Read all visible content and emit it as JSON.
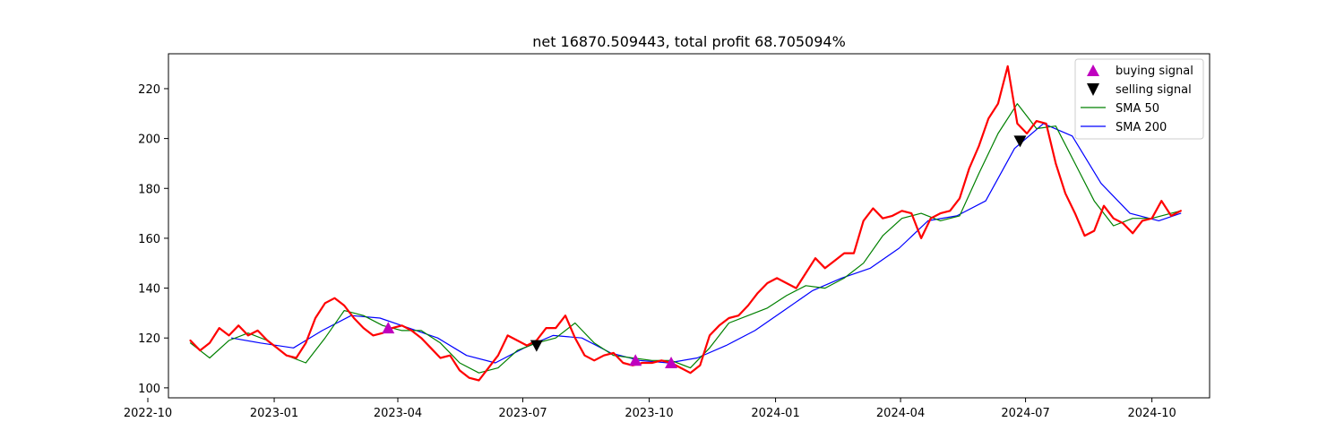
{
  "chart_data": {
    "type": "line",
    "title": "net 16870.509443, total profit 68.705094%",
    "xlabel": "",
    "ylabel": "",
    "x_ticks": [
      "2022-10",
      "2023-01",
      "2023-04",
      "2023-07",
      "2023-10",
      "2024-01",
      "2024-04",
      "2024-07",
      "2024-10"
    ],
    "y_ticks": [
      "100",
      "120",
      "140",
      "160",
      "180",
      "200",
      "220"
    ],
    "ylim": [
      96,
      234
    ],
    "xlim": [
      "2022-10-16",
      "2024-11-12"
    ],
    "grid": false,
    "legend_position": "top-right",
    "colors": {
      "close": "#ff0000",
      "sma50": "#008000",
      "sma200": "#0000ff",
      "buy": "#bf00bf",
      "sell": "#000000"
    },
    "series": [
      {
        "name": "close",
        "x": [
          "2022-11-01",
          "2022-11-08",
          "2022-11-15",
          "2022-11-22",
          "2022-11-29",
          "2022-12-06",
          "2022-12-13",
          "2022-12-20",
          "2022-12-27",
          "2023-01-03",
          "2023-01-10",
          "2023-01-17",
          "2023-01-24",
          "2023-01-31",
          "2023-02-07",
          "2023-02-14",
          "2023-02-21",
          "2023-02-28",
          "2023-03-07",
          "2023-03-14",
          "2023-03-21",
          "2023-03-28",
          "2023-04-04",
          "2023-04-11",
          "2023-04-18",
          "2023-04-25",
          "2023-05-02",
          "2023-05-09",
          "2023-05-16",
          "2023-05-23",
          "2023-05-30",
          "2023-06-06",
          "2023-06-13",
          "2023-06-20",
          "2023-06-27",
          "2023-07-04",
          "2023-07-11",
          "2023-07-18",
          "2023-07-25",
          "2023-08-01",
          "2023-08-08",
          "2023-08-15",
          "2023-08-22",
          "2023-08-29",
          "2023-09-05",
          "2023-09-12",
          "2023-09-19",
          "2023-09-26",
          "2023-10-03",
          "2023-10-10",
          "2023-10-17",
          "2023-10-24",
          "2023-10-31",
          "2023-11-07",
          "2023-11-14",
          "2023-11-21",
          "2023-11-28",
          "2023-12-05",
          "2023-12-12",
          "2023-12-19",
          "2023-12-26",
          "2024-01-02",
          "2024-01-09",
          "2024-01-16",
          "2024-01-23",
          "2024-01-30",
          "2024-02-06",
          "2024-02-13",
          "2024-02-20",
          "2024-02-27",
          "2024-03-05",
          "2024-03-12",
          "2024-03-19",
          "2024-03-26",
          "2024-04-02",
          "2024-04-09",
          "2024-04-16",
          "2024-04-23",
          "2024-04-30",
          "2024-05-07",
          "2024-05-14",
          "2024-05-21",
          "2024-05-28",
          "2024-06-04",
          "2024-06-11",
          "2024-06-18",
          "2024-06-25",
          "2024-07-02",
          "2024-07-09",
          "2024-07-16",
          "2024-07-23",
          "2024-07-30",
          "2024-08-06",
          "2024-08-13",
          "2024-08-20",
          "2024-08-27",
          "2024-09-03",
          "2024-09-10",
          "2024-09-17",
          "2024-09-24",
          "2024-10-01",
          "2024-10-08",
          "2024-10-15",
          "2024-10-22"
        ],
        "values": [
          119,
          115,
          118,
          124,
          121,
          125,
          121,
          123,
          119,
          116,
          113,
          112,
          118,
          128,
          134,
          136,
          133,
          128,
          124,
          121,
          122,
          124,
          125,
          123,
          120,
          116,
          112,
          113,
          107,
          104,
          103,
          108,
          113,
          121,
          119,
          117,
          119,
          124,
          124,
          129,
          120,
          113,
          111,
          113,
          114,
          110,
          109,
          110,
          110,
          111,
          110,
          108,
          106,
          109,
          121,
          125,
          128,
          129,
          133,
          138,
          142,
          144,
          142,
          140,
          146,
          152,
          148,
          151,
          154,
          154,
          167,
          172,
          168,
          169,
          171,
          170,
          160,
          168,
          170,
          171,
          176,
          188,
          197,
          208,
          214,
          229,
          206,
          202,
          207,
          206,
          190,
          178,
          170,
          161,
          163,
          173,
          168,
          166,
          162,
          167,
          168,
          175,
          169,
          171
        ]
      },
      {
        "name": "SMA 50",
        "x": [
          "2022-11-01",
          "2022-11-15",
          "2022-11-29",
          "2022-12-13",
          "2022-12-27",
          "2023-01-10",
          "2023-01-24",
          "2023-02-07",
          "2023-02-21",
          "2023-03-07",
          "2023-03-21",
          "2023-04-04",
          "2023-04-18",
          "2023-05-02",
          "2023-05-16",
          "2023-05-30",
          "2023-06-13",
          "2023-06-27",
          "2023-07-11",
          "2023-07-25",
          "2023-08-08",
          "2023-08-22",
          "2023-09-05",
          "2023-09-19",
          "2023-10-03",
          "2023-10-17",
          "2023-10-31",
          "2023-11-14",
          "2023-11-28",
          "2023-12-12",
          "2023-12-26",
          "2024-01-09",
          "2024-01-23",
          "2024-02-06",
          "2024-02-20",
          "2024-03-05",
          "2024-03-19",
          "2024-04-02",
          "2024-04-16",
          "2024-04-30",
          "2024-05-14",
          "2024-05-28",
          "2024-06-11",
          "2024-06-25",
          "2024-07-09",
          "2024-07-23",
          "2024-08-06",
          "2024-08-20",
          "2024-09-03",
          "2024-09-17",
          "2024-10-01",
          "2024-10-15",
          "2024-10-22"
        ],
        "values": [
          118,
          112,
          119,
          122,
          119,
          113,
          110,
          120,
          131,
          129,
          125,
          123,
          123,
          118,
          110,
          106,
          108,
          115,
          118,
          120,
          126,
          118,
          113,
          112,
          111,
          111,
          108,
          116,
          126,
          129,
          132,
          137,
          141,
          140,
          144,
          150,
          161,
          168,
          170,
          167,
          169,
          186,
          202,
          214,
          204,
          205,
          190,
          175,
          165,
          168,
          168,
          170,
          171
        ]
      },
      {
        "name": "SMA 200",
        "x": [
          "2022-12-01",
          "2022-12-22",
          "2023-01-15",
          "2023-02-05",
          "2023-02-26",
          "2023-03-19",
          "2023-04-09",
          "2023-04-30",
          "2023-05-21",
          "2023-06-11",
          "2023-07-02",
          "2023-07-23",
          "2023-08-13",
          "2023-09-03",
          "2023-09-24",
          "2023-10-15",
          "2023-11-05",
          "2023-11-26",
          "2023-12-17",
          "2024-01-07",
          "2024-01-28",
          "2024-02-18",
          "2024-03-10",
          "2024-03-31",
          "2024-04-21",
          "2024-05-12",
          "2024-06-02",
          "2024-06-23",
          "2024-07-14",
          "2024-08-04",
          "2024-08-25",
          "2024-09-15",
          "2024-10-06",
          "2024-10-22"
        ],
        "values": [
          120,
          118,
          116,
          123,
          129,
          128,
          124,
          120,
          113,
          110,
          116,
          121,
          120,
          114,
          111,
          110,
          112,
          117,
          123,
          131,
          139,
          144,
          148,
          156,
          167,
          169,
          175,
          196,
          206,
          201,
          182,
          170,
          167,
          170
        ]
      }
    ],
    "markers": {
      "buying_signal": [
        {
          "x": "2023-03-25",
          "y": 124
        },
        {
          "x": "2023-09-21",
          "y": 111
        },
        {
          "x": "2023-10-17",
          "y": 110
        }
      ],
      "selling_signal": [
        {
          "x": "2023-07-11",
          "y": 117
        },
        {
          "x": "2024-06-27",
          "y": 199
        }
      ]
    },
    "legend": [
      {
        "label": "buying signal",
        "kind": "marker-up",
        "color": "#bf00bf"
      },
      {
        "label": "selling signal",
        "kind": "marker-down",
        "color": "#000000"
      },
      {
        "label": "SMA 50",
        "kind": "line",
        "color": "#008000"
      },
      {
        "label": "SMA 200",
        "kind": "line",
        "color": "#0000ff"
      }
    ]
  }
}
